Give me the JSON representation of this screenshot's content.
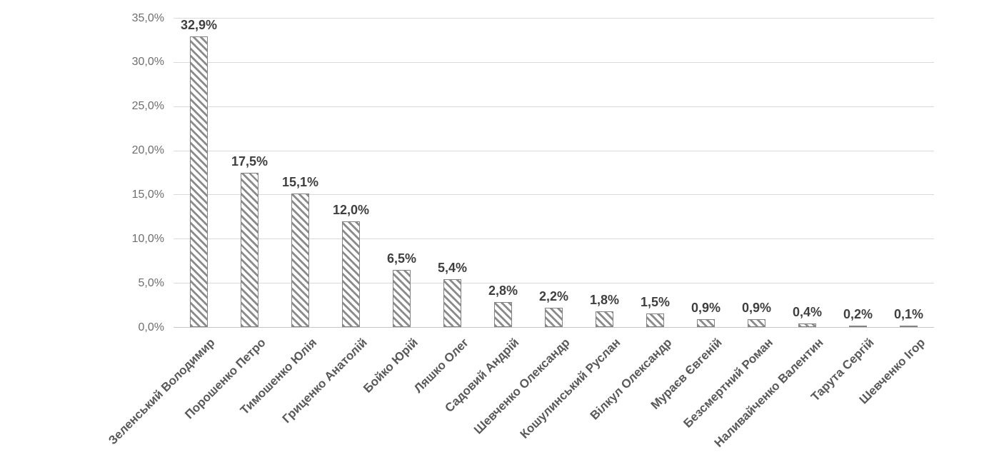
{
  "chart_data": {
    "type": "bar",
    "title": "",
    "xlabel": "",
    "ylabel": "",
    "categories": [
      "Зеленський Володимир",
      "Порошенко Петро",
      "Тимошенко Юлія",
      "Гриценко Анатолій",
      "Бойко Юрій",
      "Ляшко Олег",
      "Садовий Андрій",
      "Шевченко Олександр",
      "Кошулинський Руслан",
      "Вілкул Олександр",
      "Мураєв Євгеній",
      "Безсмертний Роман",
      "Наливайченко Валентин",
      "Тарута Сергій",
      "Шевченко Ігор"
    ],
    "values": [
      32.9,
      17.5,
      15.1,
      12.0,
      6.5,
      5.4,
      2.8,
      2.2,
      1.8,
      1.5,
      0.9,
      0.9,
      0.4,
      0.2,
      0.1
    ],
    "value_labels": [
      "32,9%",
      "17,5%",
      "15,1%",
      "12,0%",
      "6,5%",
      "5,4%",
      "2,8%",
      "2,2%",
      "1,8%",
      "1,5%",
      "0,9%",
      "0,9%",
      "0,4%",
      "0,2%",
      "0,1%"
    ],
    "ylim": [
      0,
      35
    ],
    "ytick_step": 5,
    "ytick_labels": [
      "0,0%",
      "5,0%",
      "10,0%",
      "15,0%",
      "20,0%",
      "25,0%",
      "30,0%",
      "35,0%"
    ],
    "grid": true,
    "legend_position": "none",
    "bar_fill_style": "diagonal-hatch",
    "colors": {
      "hatch_stripe": "#8b8b8b",
      "bar_border": "#838383",
      "gridline": "#d9d9d9",
      "axis_line": "#c6c6c6",
      "tick_label": "#6e6e6e",
      "value_label": "#3f3f3f",
      "category_label": "#595959",
      "background": "#ffffff"
    }
  }
}
